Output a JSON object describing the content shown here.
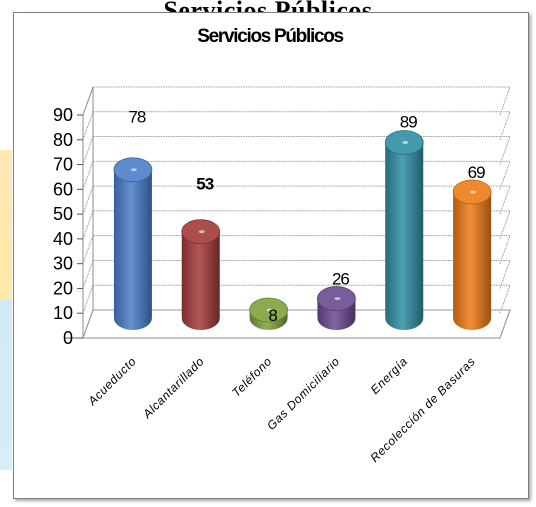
{
  "page": {
    "top_title": "Servicios Públicos",
    "strip_colors": [
      "#fde7b5",
      "#ffe9a8",
      "#cfeaf6",
      "#d8eef8"
    ]
  },
  "chart_data": {
    "type": "bar",
    "title": "Servicios Públicos",
    "xlabel": "",
    "ylabel": "",
    "categories": [
      "Acueducto",
      "Alcantarillado",
      "Teléfono",
      "Gas Domiciliario",
      "Energía",
      "Recolección de Basuras"
    ],
    "values": [
      78,
      53,
      8,
      26,
      89,
      69
    ],
    "value_labels": [
      "78",
      "53",
      "8",
      "26",
      "89",
      "69"
    ],
    "ylim": [
      0,
      90
    ],
    "yticks": [
      0,
      10,
      20,
      30,
      40,
      50,
      60,
      70,
      80,
      90
    ],
    "grid": true,
    "legend": "none",
    "colors": [
      "#4a7ec9",
      "#a33a38",
      "#7fa13a",
      "#6a4a8f",
      "#2f8ea5",
      "#ee7b17"
    ],
    "bar_shape": "cylinder",
    "projection": "3d"
  }
}
